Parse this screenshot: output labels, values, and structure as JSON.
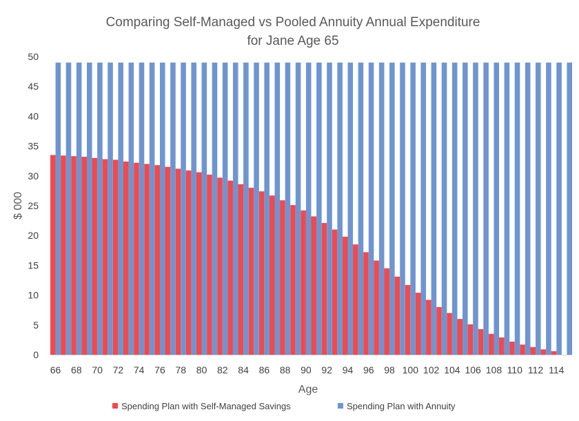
{
  "chart_data": {
    "type": "bar",
    "title": "Comparing Self-Managed vs Pooled Annuity Annual Expenditure",
    "subtitle": "for Jane Age 65",
    "xlabel": "Age",
    "ylabel": "$ 000",
    "ylim": [
      0,
      50
    ],
    "y_ticks": [
      "0",
      "5",
      "10",
      "15",
      "20",
      "25",
      "30",
      "35",
      "40",
      "45",
      "50"
    ],
    "grid": false,
    "legend_position": "bottom",
    "categories": [
      "66",
      "67",
      "68",
      "69",
      "70",
      "71",
      "72",
      "73",
      "74",
      "75",
      "76",
      "77",
      "78",
      "79",
      "80",
      "81",
      "82",
      "83",
      "84",
      "85",
      "86",
      "87",
      "88",
      "89",
      "90",
      "91",
      "92",
      "93",
      "94",
      "95",
      "96",
      "97",
      "98",
      "99",
      "100",
      "101",
      "102",
      "103",
      "104",
      "105",
      "106",
      "107",
      "108",
      "109",
      "110",
      "111",
      "112",
      "113",
      "114",
      "115"
    ],
    "x_tick_labels": [
      "66",
      "68",
      "70",
      "72",
      "74",
      "76",
      "78",
      "80",
      "82",
      "84",
      "86",
      "88",
      "90",
      "92",
      "94",
      "96",
      "98",
      "100",
      "102",
      "104",
      "106",
      "108",
      "110",
      "112",
      "114"
    ],
    "series": [
      {
        "name": "Spending Plan with Self-Managed Savings",
        "color": "#f04a4d",
        "values": [
          33.5,
          33.4,
          33.3,
          33.2,
          33.0,
          32.8,
          32.7,
          32.4,
          32.2,
          32.0,
          31.8,
          31.5,
          31.2,
          30.9,
          30.6,
          30.2,
          29.7,
          29.2,
          28.6,
          28.0,
          27.4,
          26.7,
          25.9,
          25.1,
          24.2,
          23.2,
          22.1,
          21.0,
          19.8,
          18.5,
          17.2,
          15.8,
          14.5,
          13.1,
          11.7,
          10.4,
          9.2,
          8.0,
          7.0,
          6.0,
          5.1,
          4.3,
          3.5,
          2.9,
          2.2,
          1.7,
          1.3,
          0.9,
          0.6,
          0
        ]
      },
      {
        "name": "Spending Plan with Annuity",
        "color": "#6f95d1",
        "values": [
          49,
          49,
          49,
          49,
          49,
          49,
          49,
          49,
          49,
          49,
          49,
          49,
          49,
          49,
          49,
          49,
          49,
          49,
          49,
          49,
          49,
          49,
          49,
          49,
          49,
          49,
          49,
          49,
          49,
          49,
          49,
          49,
          49,
          49,
          49,
          49,
          49,
          49,
          49,
          49,
          49,
          49,
          49,
          49,
          49,
          49,
          49,
          49,
          49,
          49
        ]
      }
    ]
  }
}
